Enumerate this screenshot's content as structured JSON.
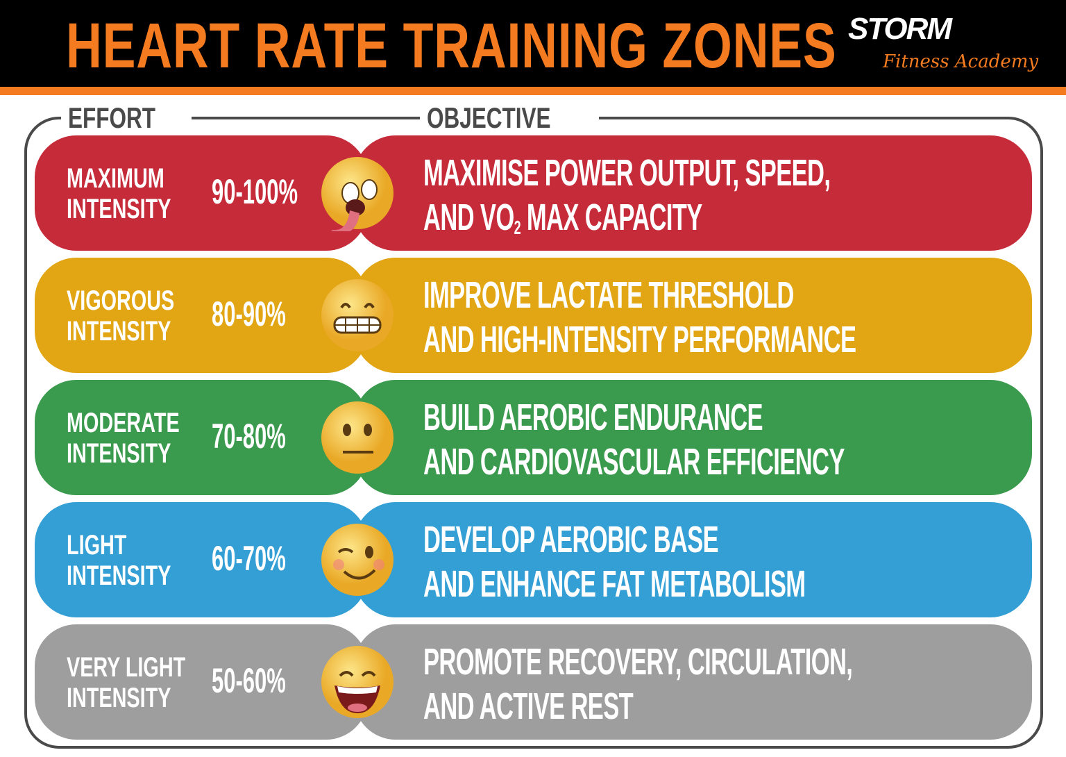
{
  "header": {
    "title": "HEART RATE TRAINING ZONES",
    "logo_text": "STORM",
    "logo_subtitle": "Fitness Academy"
  },
  "columns": {
    "effort": "EFFORT",
    "objective": "OBJECTIVE"
  },
  "colors": {
    "accent": "#f47b20",
    "maximum": "#c62b3a",
    "vigorous": "#e2a614",
    "moderate": "#3a9a4d",
    "light": "#339fd5",
    "very_light": "#9e9e9e"
  },
  "zones": [
    {
      "effort1": "MAXIMUM",
      "effort2": "INTENSITY",
      "range": "90-100%",
      "emoji": "exhausted-face-icon",
      "obj1": "MAXIMISE POWER OUTPUT,  SPEED,",
      "obj2a": "AND VO",
      "obj2sub": "2",
      "obj2b": " MAX CAPACITY"
    },
    {
      "effort1": "VIGOROUS",
      "effort2": "INTENSITY",
      "range": "80-90%",
      "emoji": "grimacing-face-icon",
      "obj1": "IMPROVE LACTATE THRESHOLD",
      "obj2a": "AND HIGH-INTENSITY PERFORMANCE"
    },
    {
      "effort1": "MODERATE",
      "effort2": "INTENSITY",
      "range": "70-80%",
      "emoji": "neutral-face-icon",
      "obj1": "BUILD AEROBIC ENDURANCE",
      "obj2a": "AND CARDIOVASCULAR EFFICIENCY"
    },
    {
      "effort1": "LIGHT",
      "effort2": "INTENSITY",
      "range": "60-70%",
      "emoji": "winking-face-icon",
      "obj1": "DEVELOP AEROBIC BASE",
      "obj2a": "AND ENHANCE FAT METABOLISM"
    },
    {
      "effort1": "VERY LIGHT",
      "effort2": "INTENSITY",
      "range": "50-60%",
      "emoji": "laughing-face-icon",
      "obj1": "PROMOTE RECOVERY, CIRCULATION,",
      "obj2a": "AND ACTIVE REST"
    }
  ]
}
